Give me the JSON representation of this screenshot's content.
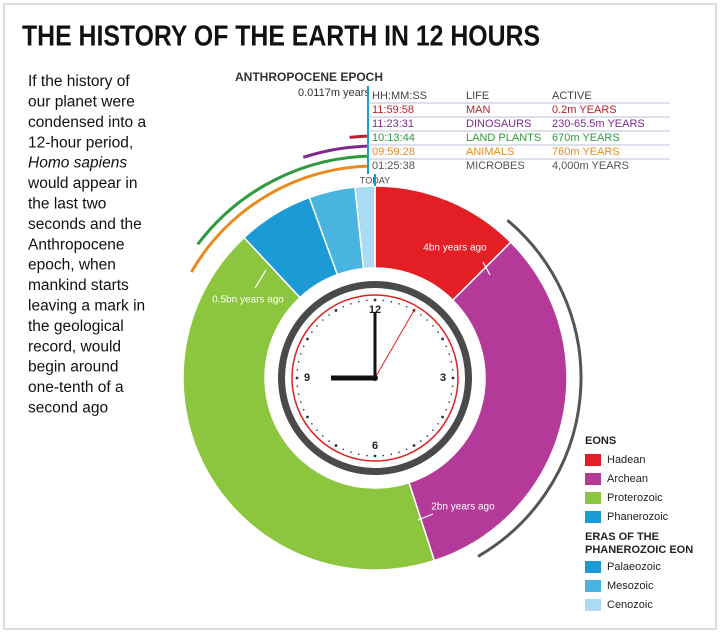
{
  "title": "THE HISTORY OF THE EARTH IN 12 HOURS",
  "intro": [
    "If the history of",
    "our planet were",
    "condensed into a",
    "12-hour period,",
    "Homo sapiens",
    "would appear in",
    "the last two",
    "seconds and the",
    "Anthropocene",
    "epoch, when",
    "mankind starts",
    "leaving a mark in",
    "the geological",
    "record, would",
    "begin around",
    "one-tenth of a",
    "second ago"
  ],
  "epoch": {
    "name": "ANTHROPOCENE EPOCH",
    "duration": "0.0117m years"
  },
  "table": {
    "header": [
      "HH:MM:SS",
      "LIFE",
      "ACTIVE"
    ],
    "rows": [
      {
        "cells": [
          "11:59:58",
          "MAN",
          "0.2m YEARS"
        ],
        "color": "#b5232b"
      },
      {
        "cells": [
          "11:23:31",
          "DINOSAURS",
          "230-65.5m YEARS"
        ],
        "color": "#7d2a8f"
      },
      {
        "cells": [
          "10:13:44",
          "LAND PLANTS",
          "670m YEARS"
        ],
        "color": "#2f9a3d"
      },
      {
        "cells": [
          "09:59:28",
          "ANIMALS",
          "760m YEARS"
        ],
        "color": "#e88a1c"
      },
      {
        "cells": [
          "01:25:38",
          "MICROBES",
          "4,000m YEARS"
        ],
        "color": "#555555"
      }
    ]
  },
  "today": "TODAY",
  "annotations": [
    "4bn years ago",
    "0.5bn years ago",
    "2bn years ago"
  ],
  "clock_numbers": [
    "12",
    "3",
    "6",
    "9"
  ],
  "legend": {
    "eons_title": "EONS",
    "eons": [
      {
        "label": "Hadean",
        "color": "#e31e25"
      },
      {
        "label": "Archean",
        "color": "#b43a9a"
      },
      {
        "label": "Proterozoic",
        "color": "#8cc63e"
      },
      {
        "label": "Phanerozoic",
        "color": "#1b9ad6"
      }
    ],
    "eras_title": [
      "ERAS OF THE",
      "PHANEROZOIC EON"
    ],
    "eras": [
      {
        "label": "Palaeozoic",
        "color": "#1b9ad6"
      },
      {
        "label": "Mesozoic",
        "color": "#47b5e0"
      },
      {
        "label": "Cenozoic",
        "color": "#a9dcf2"
      }
    ]
  }
}
